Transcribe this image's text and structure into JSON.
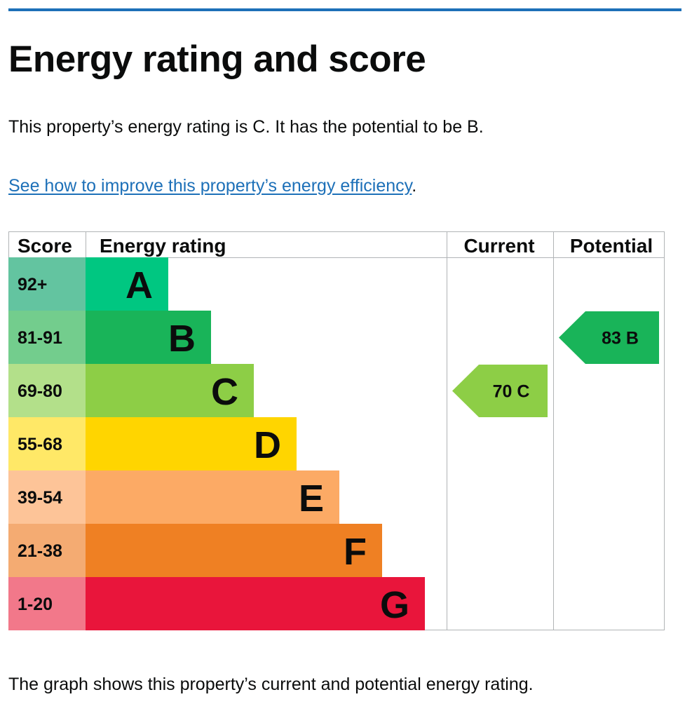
{
  "page": {
    "title": "Energy rating and score",
    "intro": "This property’s energy rating is C. It has the potential to be B.",
    "link_text": "See how to improve this property’s energy efficiency",
    "link_suffix": ".",
    "footer": "The graph shows this property’s current and potential energy rating."
  },
  "chart_data": {
    "type": "bar",
    "headers": {
      "score": "Score",
      "rating": "Energy rating",
      "current": "Current",
      "potential": "Potential"
    },
    "bands": [
      {
        "score": "92+",
        "letter": "A",
        "score_color": "#63c4a0",
        "color": "#00c781"
      },
      {
        "score": "81-91",
        "letter": "B",
        "score_color": "#73cd8d",
        "color": "#19b459"
      },
      {
        "score": "69-80",
        "letter": "C",
        "score_color": "#b3e08a",
        "color": "#8dce46"
      },
      {
        "score": "55-68",
        "letter": "D",
        "score_color": "#ffe867",
        "color": "#ffd500"
      },
      {
        "score": "39-54",
        "letter": "E",
        "score_color": "#fdc498",
        "color": "#fcaa65"
      },
      {
        "score": "21-38",
        "letter": "F",
        "score_color": "#f4ab72",
        "color": "#ef8023"
      },
      {
        "score": "1-20",
        "letter": "G",
        "score_color": "#f2788a",
        "color": "#e9153b"
      }
    ],
    "current": {
      "value": 70,
      "letter": "C",
      "label": "70  C",
      "color": "#8dce46"
    },
    "potential": {
      "value": 83,
      "letter": "B",
      "label": "83  B",
      "color": "#19b459"
    }
  }
}
